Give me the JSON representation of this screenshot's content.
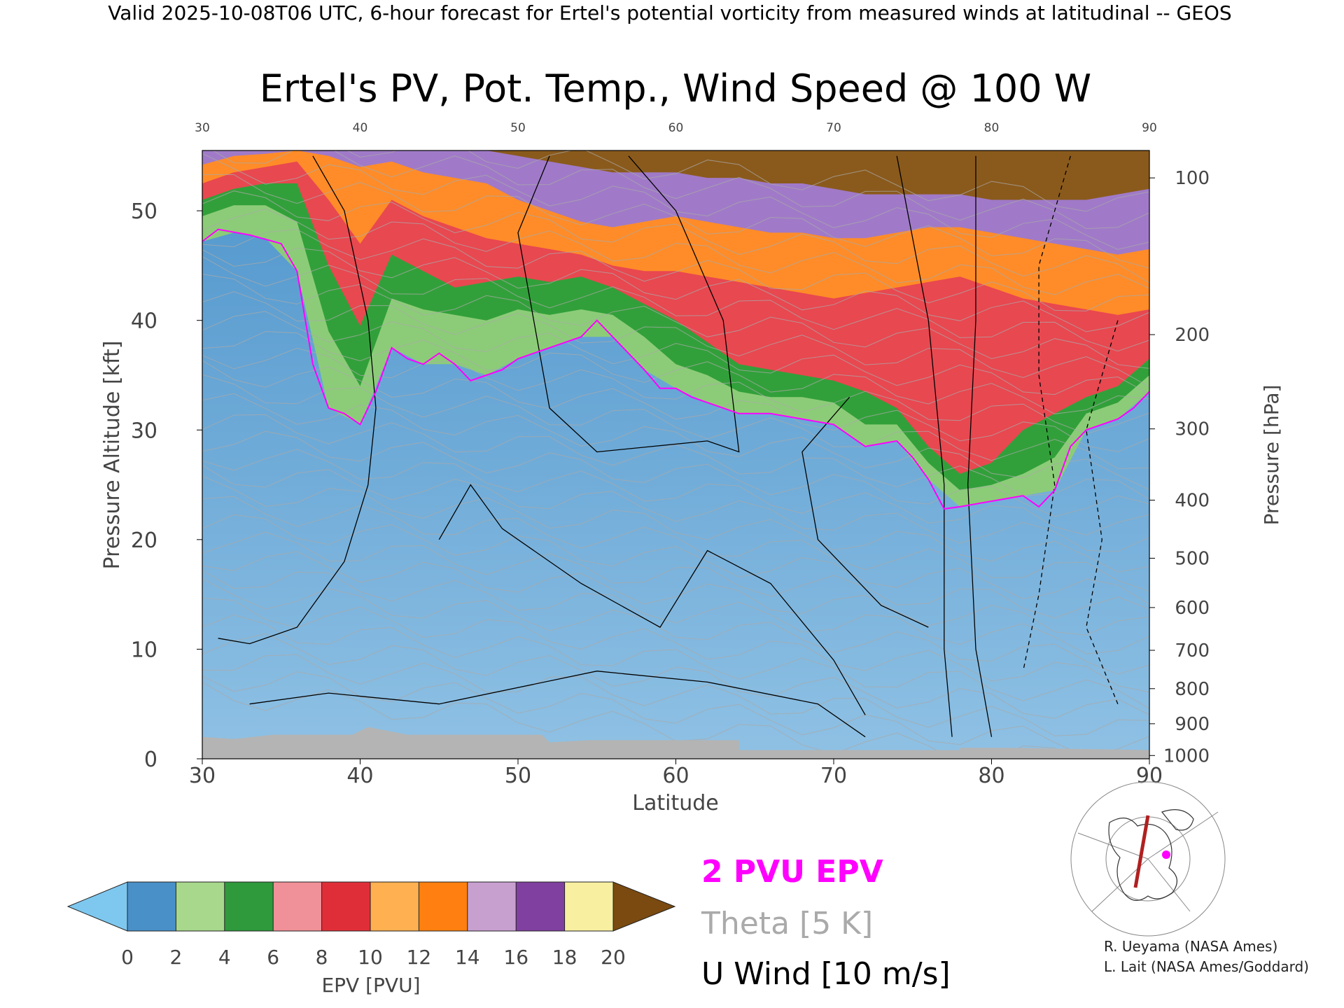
{
  "header": {
    "valid_line": "Valid 2025-10-08T06 UTC, 6-hour forecast for Ertel's potential vorticity from measured winds at latitudinal -- GEOS"
  },
  "chart_data": {
    "type": "heatmap",
    "title": "Ertel's PV, Pot. Temp., Wind Speed @ 100 W",
    "xlabel": "Latitude",
    "ylabel_left": "Pressure Altitude [kft]",
    "ylabel_right": "Pressure [hPa]",
    "xlim": [
      30,
      90
    ],
    "ylim_kft": [
      0,
      55.5
    ],
    "x_ticks": [
      "30",
      "40",
      "50",
      "60",
      "70",
      "80",
      "90"
    ],
    "x_ticks_top": [
      "30",
      "40",
      "50",
      "60",
      "70",
      "80",
      "90"
    ],
    "y_ticks_left": [
      "0",
      "10",
      "20",
      "30",
      "40",
      "50"
    ],
    "y_ticks_right": [
      {
        "label": "100",
        "kft": 53.0
      },
      {
        "label": "200",
        "kft": 38.7
      },
      {
        "label": "300",
        "kft": 30.1
      },
      {
        "label": "400",
        "kft": 23.6
      },
      {
        "label": "500",
        "kft": 18.3
      },
      {
        "label": "600",
        "kft": 13.8
      },
      {
        "label": "700",
        "kft": 9.9
      },
      {
        "label": "800",
        "kft": 6.4
      },
      {
        "label": "900",
        "kft": 3.2
      },
      {
        "label": "1000",
        "kft": 0.3
      }
    ],
    "tropopause_2pvu_kft": [
      [
        30,
        47.2
      ],
      [
        31,
        48.3
      ],
      [
        33,
        47.8
      ],
      [
        35,
        47.0
      ],
      [
        36,
        44.5
      ],
      [
        37,
        36.0
      ],
      [
        38,
        32.0
      ],
      [
        39,
        31.5
      ],
      [
        40,
        30.5
      ],
      [
        41,
        33.5
      ],
      [
        42,
        37.5
      ],
      [
        43,
        36.5
      ],
      [
        44,
        36.0
      ],
      [
        45,
        37.0
      ],
      [
        46,
        36.0
      ],
      [
        47,
        34.5
      ],
      [
        48,
        35.0
      ],
      [
        49,
        35.5
      ],
      [
        50,
        36.5
      ],
      [
        52,
        37.5
      ],
      [
        54,
        38.5
      ],
      [
        55,
        40.0
      ],
      [
        56,
        38.5
      ],
      [
        57,
        37.0
      ],
      [
        58,
        35.5
      ],
      [
        59,
        33.8
      ],
      [
        60,
        33.8
      ],
      [
        61,
        33.0
      ],
      [
        62,
        32.5
      ],
      [
        64,
        31.5
      ],
      [
        66,
        31.5
      ],
      [
        68,
        31.0
      ],
      [
        70,
        30.5
      ],
      [
        72,
        28.5
      ],
      [
        74,
        29.0
      ],
      [
        75,
        27.5
      ],
      [
        76,
        25.5
      ],
      [
        77,
        22.8
      ],
      [
        78,
        23.0
      ],
      [
        80,
        23.5
      ],
      [
        82,
        24.0
      ],
      [
        83,
        23.0
      ],
      [
        84,
        24.5
      ],
      [
        85,
        28.5
      ],
      [
        86,
        30.0
      ],
      [
        88,
        31.0
      ],
      [
        89,
        32.0
      ],
      [
        90,
        33.5
      ]
    ],
    "pv_layers_kft": [
      [
        30,
        47.2,
        49.5,
        51.0,
        52.5,
        54.2,
        55.5
      ],
      [
        32,
        48.0,
        50.5,
        52.0,
        53.5,
        55.0,
        55.5
      ],
      [
        34,
        47.5,
        50.5,
        52.5,
        54.0,
        55.2,
        55.5
      ],
      [
        36,
        44.5,
        49.0,
        52.5,
        54.5,
        55.5,
        55.5
      ],
      [
        38,
        32.0,
        39.0,
        45.0,
        51.0,
        55.0,
        55.5
      ],
      [
        40,
        30.5,
        34.0,
        39.5,
        47.0,
        54.0,
        55.5
      ],
      [
        42,
        37.5,
        42.0,
        46.0,
        51.0,
        54.5,
        55.5
      ],
      [
        44,
        36.0,
        41.0,
        44.5,
        49.5,
        53.5,
        55.5
      ],
      [
        46,
        36.0,
        40.5,
        43.0,
        48.5,
        53.0,
        55.5
      ],
      [
        48,
        35.0,
        40.0,
        43.5,
        47.5,
        52.5,
        55.5
      ],
      [
        50,
        36.5,
        41.0,
        44.0,
        47.0,
        51.0,
        55.0
      ],
      [
        52,
        37.5,
        40.5,
        43.5,
        46.5,
        50.0,
        54.5
      ],
      [
        54,
        38.5,
        41.0,
        44.0,
        46.0,
        49.0,
        54.0
      ],
      [
        56,
        38.5,
        40.5,
        43.0,
        45.0,
        48.5,
        53.5
      ],
      [
        58,
        35.5,
        38.5,
        41.5,
        44.5,
        49.0,
        53.5
      ],
      [
        60,
        33.8,
        36.0,
        40.0,
        44.5,
        49.5,
        53.5
      ],
      [
        62,
        32.5,
        35.0,
        38.0,
        44.0,
        49.0,
        53.0
      ],
      [
        64,
        31.5,
        33.5,
        36.0,
        43.5,
        48.5,
        53.0
      ],
      [
        66,
        31.5,
        33.0,
        35.5,
        43.0,
        48.0,
        52.5
      ],
      [
        68,
        31.0,
        33.0,
        35.0,
        42.5,
        48.0,
        52.5
      ],
      [
        70,
        30.5,
        32.5,
        34.5,
        42.0,
        47.5,
        52.0
      ],
      [
        72,
        28.5,
        30.5,
        33.5,
        42.5,
        47.5,
        51.5
      ],
      [
        74,
        29.0,
        30.5,
        32.0,
        43.0,
        48.0,
        51.5
      ],
      [
        76,
        25.5,
        27.0,
        28.5,
        43.5,
        48.5,
        51.5
      ],
      [
        78,
        23.0,
        24.5,
        26.0,
        44.0,
        48.5,
        51.5
      ],
      [
        80,
        23.5,
        25.0,
        27.0,
        43.0,
        48.0,
        51.0
      ],
      [
        82,
        24.0,
        26.0,
        30.0,
        42.0,
        47.5,
        51.0
      ],
      [
        84,
        24.5,
        27.5,
        31.5,
        41.5,
        47.0,
        51.0
      ],
      [
        86,
        30.0,
        31.5,
        33.0,
        41.0,
        46.5,
        51.0
      ],
      [
        88,
        31.0,
        32.5,
        34.0,
        40.5,
        46.0,
        51.5
      ],
      [
        90,
        33.5,
        35.0,
        36.5,
        41.0,
        46.5,
        52.0
      ]
    ],
    "pv_layer_colors": [
      "#8ccc78",
      "#32a03a",
      "#e84850",
      "#ff8c28",
      "#a07ac8",
      "#8a5a1c"
    ],
    "surface_kft": [
      [
        30,
        2.0
      ],
      [
        32,
        1.8
      ],
      [
        34.5,
        2.2
      ],
      [
        36,
        2.2
      ],
      [
        39.5,
        2.2
      ],
      [
        40.5,
        2.9
      ],
      [
        43,
        2.2
      ],
      [
        47,
        2.2
      ],
      [
        51.5,
        2.2
      ],
      [
        52,
        1.5
      ],
      [
        54.5,
        1.7
      ],
      [
        64,
        1.7
      ],
      [
        64,
        0.8
      ],
      [
        78,
        0.8
      ],
      [
        78,
        1.0
      ],
      [
        81,
        1.0
      ],
      [
        90,
        0.8
      ]
    ],
    "colorbar": {
      "label": "EPV [PVU]",
      "ticks": [
        "0",
        "2",
        "4",
        "6",
        "8",
        "10",
        "12",
        "14",
        "16",
        "18",
        "20"
      ],
      "colors": [
        "#7ec8f0",
        "#4a90c8",
        "#a8d88c",
        "#2e9a3c",
        "#f09098",
        "#e02e38",
        "#ffb050",
        "#ff8010",
        "#c8a0d0",
        "#8040a0",
        "#f8f0a0",
        "#7a4a10"
      ]
    },
    "legend": {
      "epv": "2 PVU EPV",
      "theta": "Theta [5 K]",
      "wind": "U Wind [10 m/s]"
    },
    "series_colors": {
      "tropopause": "#ff00ff",
      "theta": "#aaaaaa",
      "wind": "#000000"
    },
    "credits": [
      "R. Ueyama (NASA Ames)",
      "L. Lait (NASA Ames/Goddard)"
    ]
  }
}
